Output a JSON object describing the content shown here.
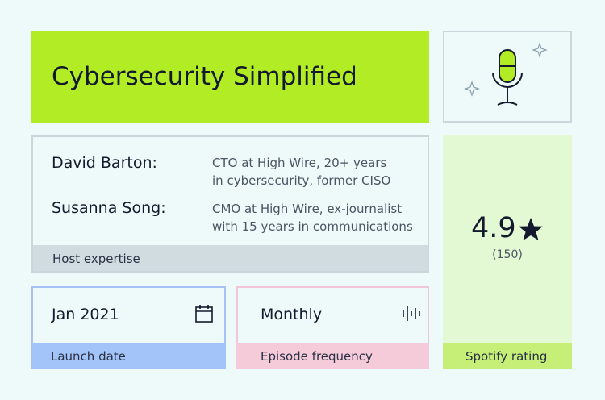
{
  "header": {
    "title": "Cybersecurity Simplified"
  },
  "hosts": {
    "items": [
      {
        "name": "David Barton:",
        "bio": [
          "CTO at High Wire, 20+ years",
          "in cybersecurity, former CISO"
        ]
      },
      {
        "name": "Susanna Song:",
        "bio": [
          "CMO at High Wire, ex-journalist",
          "with 15 years in communications"
        ]
      }
    ],
    "label": "Host expertise"
  },
  "rating": {
    "value": 4.9,
    "count": "(150)",
    "label": "Spotify rating"
  },
  "launch": {
    "value": "Jan 2021",
    "label": "Launch date"
  },
  "frequency": {
    "value": "Monthly",
    "label": "Episode frequency"
  }
}
